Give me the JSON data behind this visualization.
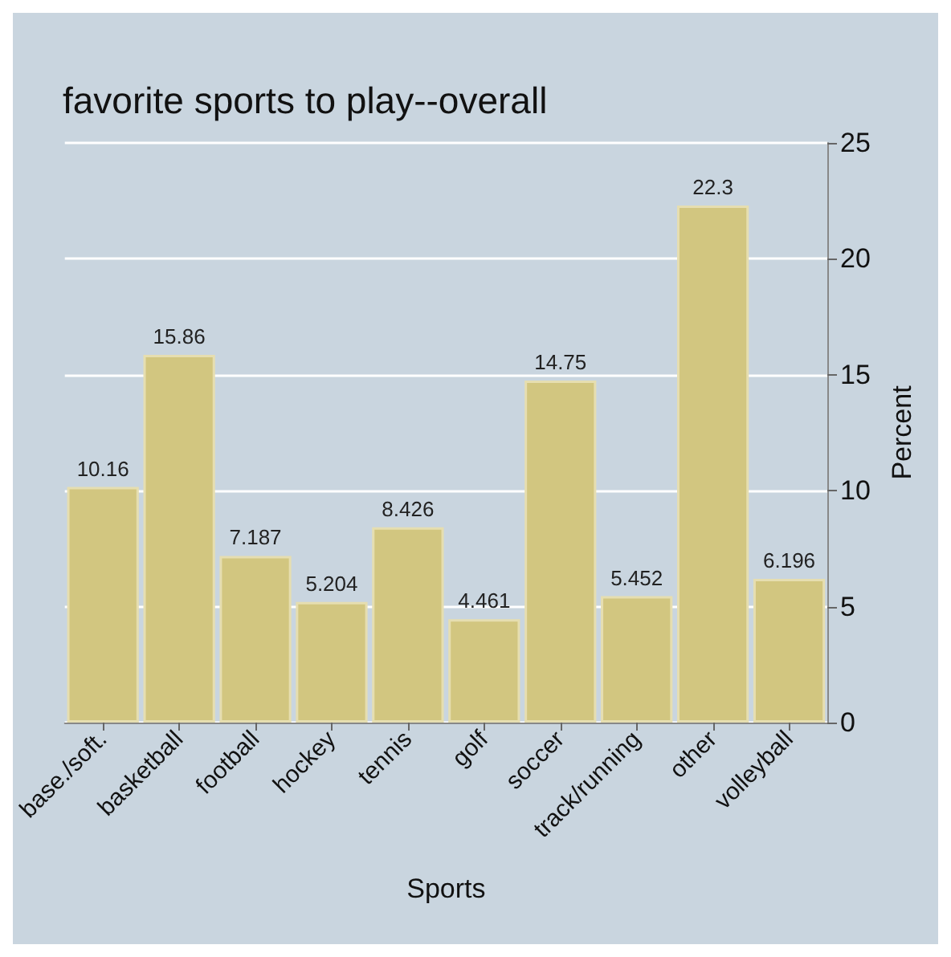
{
  "chart_data": {
    "type": "bar",
    "title": "favorite sports to play--overall",
    "xlabel": "Sports",
    "ylabel": "Percent",
    "categories": [
      "base./soft.",
      "basketball",
      "football",
      "hockey",
      "tennis",
      "golf",
      "soccer",
      "track/running",
      "other",
      "volleyball"
    ],
    "values": [
      10.16,
      15.86,
      7.187,
      5.204,
      8.426,
      4.461,
      14.75,
      5.452,
      22.3,
      6.196
    ],
    "color": "#d2c680",
    "ylim": [
      0,
      25
    ],
    "yticks": [
      0,
      5,
      10,
      15,
      20,
      25
    ],
    "grid": "y",
    "data_labels": true
  }
}
